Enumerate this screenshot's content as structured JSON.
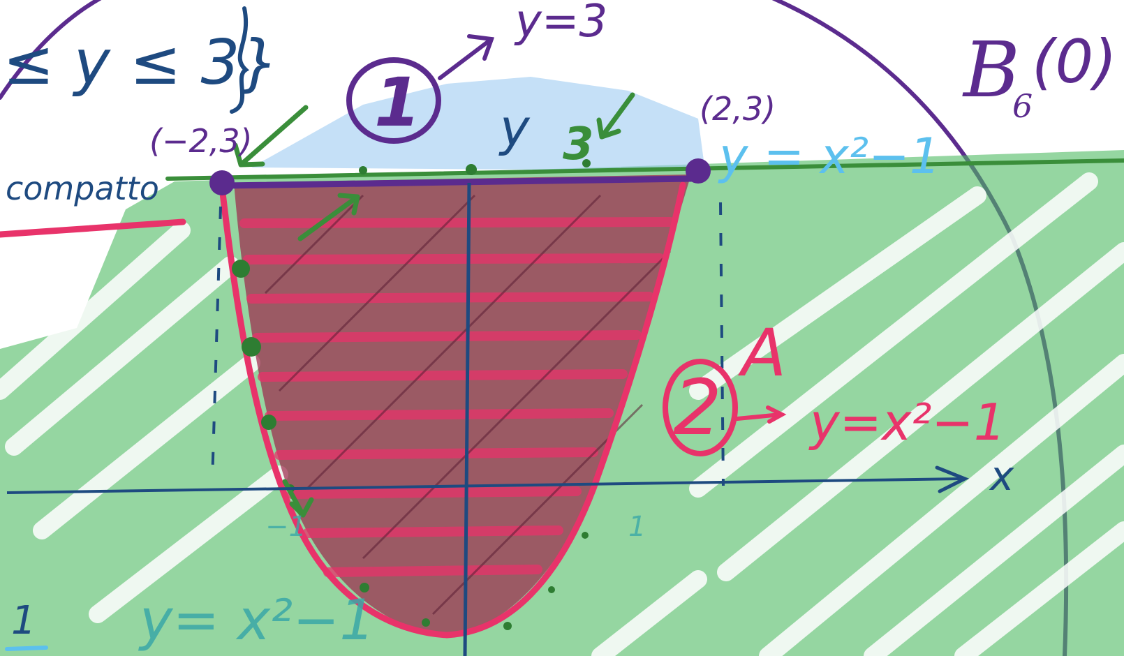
{
  "colors": {
    "green_fill": "#4fba63",
    "blue_fill": "#9fcbf2",
    "crimson_fill": "#9e2a4c",
    "pink": "#e8336a",
    "purple": "#5b2b8e",
    "navy": "#1e4a80",
    "green_line": "#3a8e3a",
    "light_blue_text": "#5cc0ee",
    "teal_text": "#3aa8a8"
  },
  "labels": {
    "set_fragment": "≤ y ≤ 3}",
    "y_eq_3": "y=3",
    "ball": "B",
    "ball_sub": "6",
    "ball_arg": "(0)",
    "point_left": "(−2,3)",
    "point_right": "(2,3)",
    "compatto": "compatto",
    "circle_1": "1",
    "circle_2": "2",
    "y_3_mid_y": "y",
    "y_3_mid_3": "3",
    "curve_label_top": "y = x²−1",
    "region_A": "A",
    "curve_label_right": "y=x²−1",
    "curve_label_bottom": "y= x²−1",
    "axis_x": "x",
    "tick_neg1": "−1",
    "tick_1": "1",
    "corner_1": "1"
  }
}
